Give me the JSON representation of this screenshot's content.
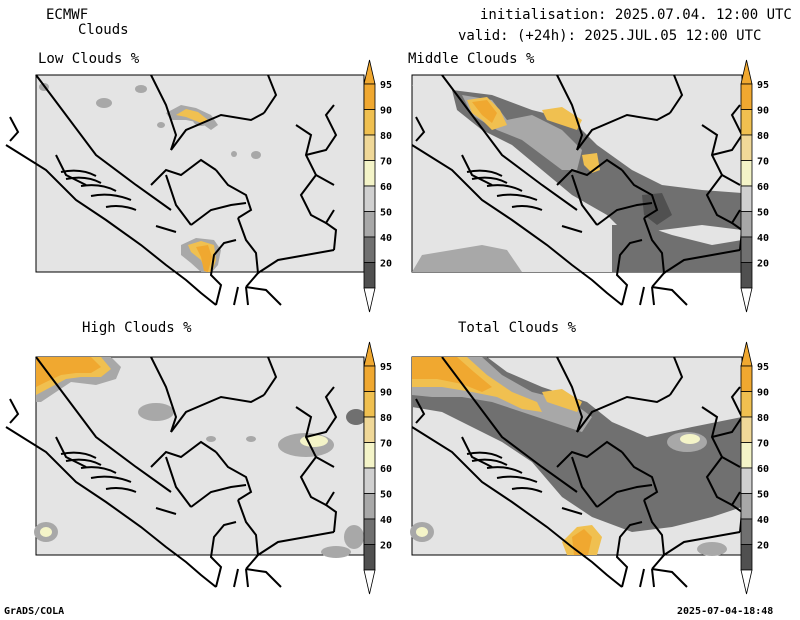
{
  "header": {
    "model": "ECMWF",
    "parameter": "Clouds",
    "init_label": "initialisation: 2025.07.04. 12:00 UTC",
    "valid_label": "valid: (+24h): 2025.JUL.05 12:00 UTC"
  },
  "panels": [
    {
      "title": "Low Clouds %"
    },
    {
      "title": "Middle Clouds %"
    },
    {
      "title": "High Clouds %"
    },
    {
      "title": "Total Clouds %"
    }
  ],
  "colorbar": {
    "labels": [
      "95",
      "90",
      "80",
      "70",
      "60",
      "50",
      "40",
      "20"
    ],
    "colors": [
      "#f0a830",
      "#f0c050",
      "#f0d898",
      "#f4f4c8",
      "#d0d0d0",
      "#a8a8a8",
      "#707070",
      "#505050"
    ],
    "tip_top_color": "#f0a830",
    "tip_bottom_color": "#ffffff"
  },
  "colors": {
    "background_map": "#e4e4e4",
    "cloud_high": "#f0a830",
    "cloud_mid": "#707070"
  },
  "footer": {
    "software": "GrADS/COLA",
    "timestamp": "2025-07-04-18:48"
  }
}
